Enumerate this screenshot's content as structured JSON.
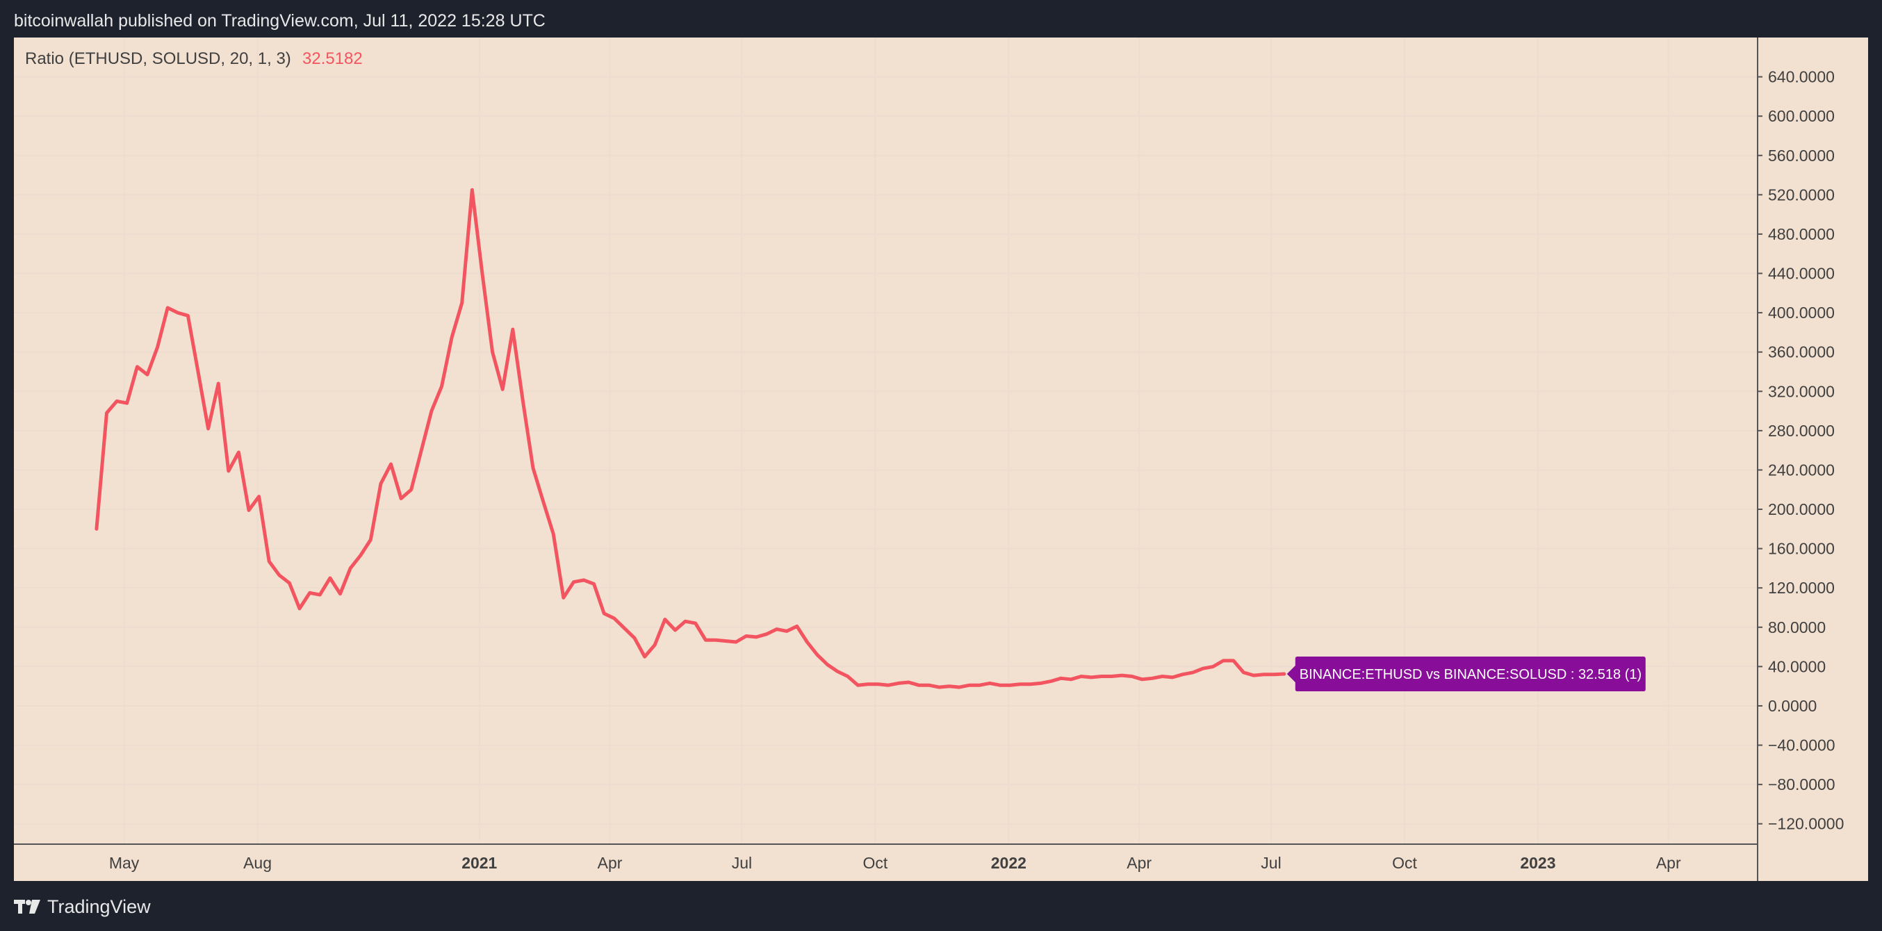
{
  "header": {
    "text": "bitcoinwallah published on TradingView.com, Jul 11, 2022 15:28 UTC"
  },
  "footer": {
    "brand": "TradingView",
    "logo_icon": "tradingview-logo-icon"
  },
  "colors": {
    "line": "#f25560",
    "badge": "#880e99",
    "background": "#f2e0d0",
    "page": "#1e222d",
    "grid": "#eddcd0",
    "text": "#404040"
  },
  "chart_data": {
    "type": "line",
    "grid": true,
    "legend": {
      "label": "Ratio (ETHUSD, SOLUSD, 20, 1, 3)",
      "value": "32.5182",
      "placement": "top-left"
    },
    "last_value_badge": "BINANCE:ETHUSD vs BINANCE:SOLUSD : 32.518 (1)",
    "ylim": [
      -140,
      680
    ],
    "y_ticks": [
      640,
      600,
      560,
      520,
      480,
      440,
      400,
      360,
      320,
      280,
      240,
      200,
      160,
      120,
      80,
      40,
      0,
      -40,
      -80,
      -120
    ],
    "y_tick_labels": [
      "640.0000",
      "600.0000",
      "560.0000",
      "520.0000",
      "480.0000",
      "440.0000",
      "400.0000",
      "360.0000",
      "320.0000",
      "280.0000",
      "240.0000",
      "200.0000",
      "160.0000",
      "120.0000",
      "80.0000",
      "40.0000",
      "0.0000",
      "−40.0000",
      "−80.0000",
      "−120.0000"
    ],
    "xlim": [
      "2020-02-15",
      "2023-06-01"
    ],
    "x_ticks": [
      {
        "date": "2020-05-01",
        "label": "May",
        "bold": false
      },
      {
        "date": "2020-08-01",
        "label": "Aug",
        "bold": false
      },
      {
        "date": "2021-01-01",
        "label": "2021",
        "bold": true
      },
      {
        "date": "2021-04-01",
        "label": "Apr",
        "bold": false
      },
      {
        "date": "2021-07-01",
        "label": "Jul",
        "bold": false
      },
      {
        "date": "2021-10-01",
        "label": "Oct",
        "bold": false
      },
      {
        "date": "2022-01-01",
        "label": "2022",
        "bold": true
      },
      {
        "date": "2022-04-01",
        "label": "Apr",
        "bold": false
      },
      {
        "date": "2022-07-01",
        "label": "Jul",
        "bold": false
      },
      {
        "date": "2022-10-01",
        "label": "Oct",
        "bold": false
      },
      {
        "date": "2023-01-01",
        "label": "2023",
        "bold": true
      },
      {
        "date": "2023-04-01",
        "label": "Apr",
        "bold": false
      }
    ],
    "series": [
      {
        "x": [
          "2020-04-12",
          "2020-04-19",
          "2020-04-26",
          "2020-05-03",
          "2020-05-10",
          "2020-05-17",
          "2020-05-24",
          "2020-05-31",
          "2020-06-07",
          "2020-06-14",
          "2020-06-21",
          "2020-06-28",
          "2020-07-05",
          "2020-07-12",
          "2020-07-19",
          "2020-07-26",
          "2020-08-02",
          "2020-08-09",
          "2020-08-16",
          "2020-08-23",
          "2020-08-30",
          "2020-09-06",
          "2020-09-13",
          "2020-09-20",
          "2020-09-27",
          "2020-10-04",
          "2020-10-11",
          "2020-10-18",
          "2020-10-25",
          "2020-11-01",
          "2020-11-08",
          "2020-11-15",
          "2020-11-22",
          "2020-11-29",
          "2020-12-06",
          "2020-12-13",
          "2020-12-20",
          "2020-12-27",
          "2021-01-03",
          "2021-01-10",
          "2021-01-17",
          "2021-01-24",
          "2021-01-31",
          "2021-02-07",
          "2021-02-14",
          "2021-02-21",
          "2021-02-28",
          "2021-03-07",
          "2021-03-14",
          "2021-03-21",
          "2021-03-28",
          "2021-04-04",
          "2021-04-11",
          "2021-04-18",
          "2021-04-25",
          "2021-05-02",
          "2021-05-09",
          "2021-05-16",
          "2021-05-23",
          "2021-05-30",
          "2021-06-06",
          "2021-06-13",
          "2021-06-20",
          "2021-06-27",
          "2021-07-04",
          "2021-07-11",
          "2021-07-18",
          "2021-07-25",
          "2021-08-01",
          "2021-08-08",
          "2021-08-15",
          "2021-08-22",
          "2021-08-29",
          "2021-09-05",
          "2021-09-12",
          "2021-09-19",
          "2021-09-26",
          "2021-10-03",
          "2021-10-10",
          "2021-10-17",
          "2021-10-24",
          "2021-10-31",
          "2021-11-07",
          "2021-11-14",
          "2021-11-21",
          "2021-11-28",
          "2021-12-05",
          "2021-12-12",
          "2021-12-19",
          "2021-12-26",
          "2022-01-02",
          "2022-01-09",
          "2022-01-16",
          "2022-01-23",
          "2022-01-30",
          "2022-02-06",
          "2022-02-13",
          "2022-02-20",
          "2022-02-27",
          "2022-03-06",
          "2022-03-13",
          "2022-03-20",
          "2022-03-27",
          "2022-04-03",
          "2022-04-10",
          "2022-04-17",
          "2022-04-24",
          "2022-05-01",
          "2022-05-08",
          "2022-05-15",
          "2022-05-22",
          "2022-05-29",
          "2022-06-05",
          "2022-06-12",
          "2022-06-19",
          "2022-06-26",
          "2022-07-03",
          "2022-07-10"
        ],
        "values": [
          180,
          298,
          310,
          308,
          345,
          337,
          365,
          405,
          400,
          397,
          340,
          282,
          328,
          239,
          258,
          199,
          213,
          147,
          133,
          125,
          99,
          115,
          113,
          130,
          114,
          140,
          153,
          169,
          226,
          246,
          211,
          220,
          260,
          300,
          325,
          375,
          410,
          525,
          440,
          360,
          322,
          383,
          310,
          242,
          208,
          175,
          110,
          126,
          128,
          124,
          94,
          89,
          79,
          69,
          50,
          62,
          88,
          77,
          86,
          84,
          67,
          67,
          66,
          65,
          71,
          70,
          73,
          78,
          76,
          81,
          65,
          52,
          42,
          35,
          30,
          21,
          22,
          22,
          21,
          23,
          24,
          21,
          21,
          19,
          20,
          19,
          21,
          21,
          23,
          21,
          21,
          22,
          22,
          23,
          25,
          28,
          27,
          30,
          29,
          30,
          30,
          31,
          30,
          27,
          28,
          30,
          29,
          32,
          34,
          38,
          40,
          46,
          46,
          34,
          31,
          32,
          32,
          32.5
        ]
      }
    ]
  }
}
